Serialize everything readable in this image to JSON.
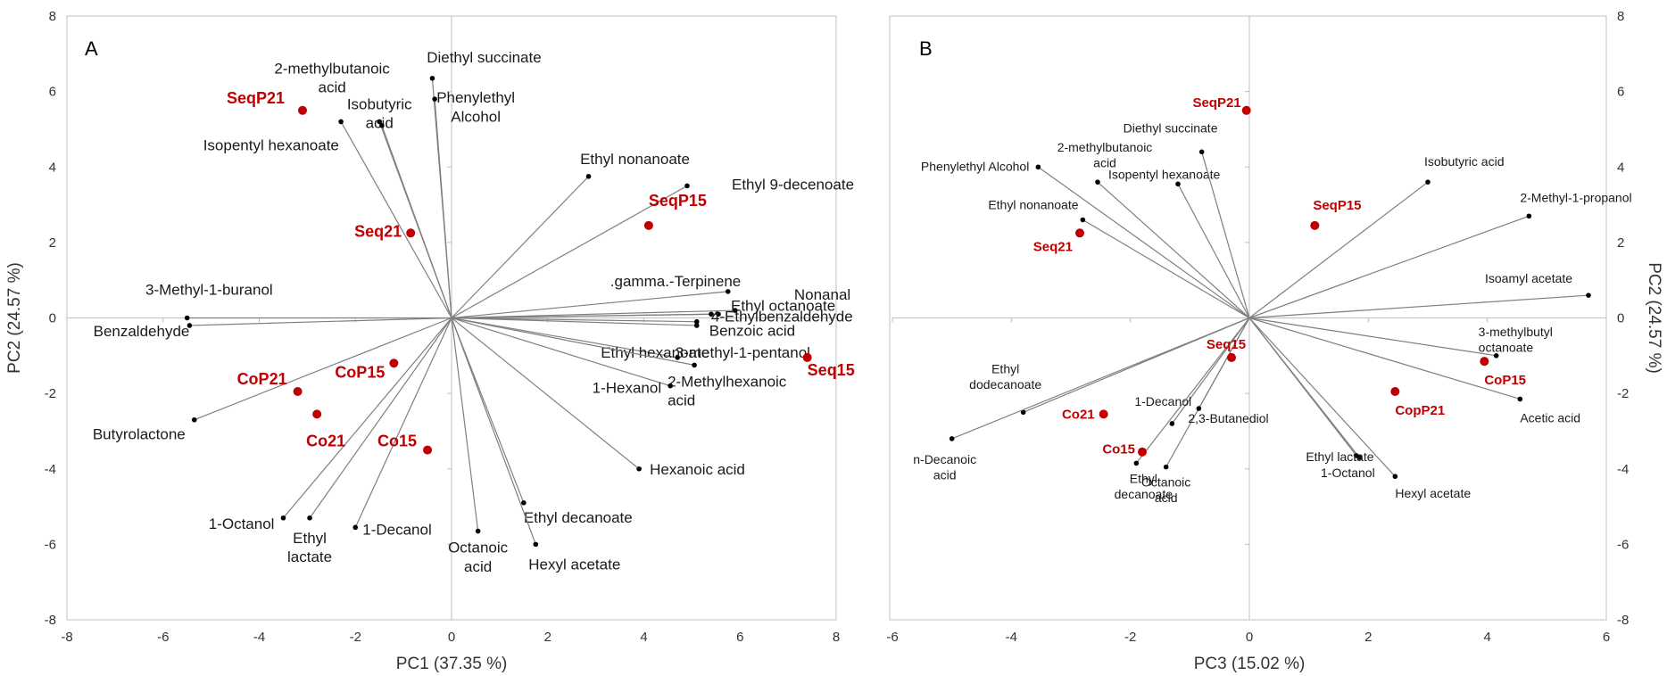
{
  "chart_data": [
    {
      "type": "scatter",
      "panel": "A",
      "xlabel": "PC1 (37.35 %)",
      "ylabel": "PC2 (24.57 %)",
      "xlim": [
        -8,
        8
      ],
      "ylim": [
        -8,
        8
      ],
      "xticks": [
        -8,
        -6,
        -4,
        -2,
        0,
        2,
        4,
        6,
        8
      ],
      "yticks": [
        -8,
        -6,
        -4,
        -2,
        0,
        2,
        4,
        6,
        8
      ],
      "grid": false,
      "loading_color": "#000000",
      "sample_color": "#c00000",
      "loadings": [
        {
          "label": "2-methylbutanoic\nacid",
          "x": -2.3,
          "y": 5.2
        },
        {
          "label": "Isobutyric\nacid",
          "x": -1.5,
          "y": 5.2
        },
        {
          "label": "Isopentyl hexanoate",
          "x": -1.45,
          "y": 5.1
        },
        {
          "label": "Diethyl succinate",
          "x": -0.4,
          "y": 6.35
        },
        {
          "label": "Phenylethyl\nAlcohol",
          "x": -0.35,
          "y": 5.8
        },
        {
          "label": "Ethyl nonanoate",
          "x": 2.85,
          "y": 3.75
        },
        {
          "label": "Ethyl 9-decenoate",
          "x": 4.9,
          "y": 3.5
        },
        {
          "label": ".gamma.-Terpinene",
          "x": 5.75,
          "y": 0.7
        },
        {
          "label": "Nonanal",
          "x": 5.9,
          "y": 0.2
        },
        {
          "label": "Ethyl octanoate",
          "x": 5.55,
          "y": 0.1
        },
        {
          "label": "4-Ethylbenzaldehyde",
          "x": 5.4,
          "y": 0.1
        },
        {
          "label": "Benzoic acid",
          "x": 5.1,
          "y": -0.1
        },
        {
          "label": "3-methyl-1-pentanol",
          "x": 5.1,
          "y": -0.2
        },
        {
          "label": "Ethyl hexanoate",
          "x": 4.7,
          "y": -1.05
        },
        {
          "label": "2-Methylhexanoic\nacid",
          "x": 5.05,
          "y": -1.25
        },
        {
          "label": "1-Hexanol",
          "x": 4.55,
          "y": -1.8
        },
        {
          "label": "Hexanoic acid",
          "x": 3.9,
          "y": -4.0
        },
        {
          "label": "Ethyl decanoate",
          "x": 1.5,
          "y": -4.9
        },
        {
          "label": "Hexyl acetate",
          "x": 1.75,
          "y": -6.0
        },
        {
          "label": "Octanoic\nacid",
          "x": 0.55,
          "y": -5.65
        },
        {
          "label": "1-Decanol",
          "x": -2.0,
          "y": -5.55
        },
        {
          "label": "Ethyl\nlactate",
          "x": -2.95,
          "y": -5.3
        },
        {
          "label": "1-Octanol",
          "x": -3.5,
          "y": -5.3
        },
        {
          "label": "Butyrolactone",
          "x": -5.35,
          "y": -2.7
        },
        {
          "label": "3-Methyl-1-buranol",
          "x": -5.5,
          "y": 0.0
        },
        {
          "label": "Benzaldehyde",
          "x": -5.45,
          "y": -0.2
        }
      ],
      "samples": [
        {
          "label": "SeqP21",
          "x": -3.1,
          "y": 5.5
        },
        {
          "label": "Seq21",
          "x": -0.85,
          "y": 2.25
        },
        {
          "label": "SeqP15",
          "x": 4.1,
          "y": 2.45
        },
        {
          "label": "Seq15",
          "x": 7.4,
          "y": -1.05
        },
        {
          "label": "CoP15",
          "x": -1.2,
          "y": -1.2
        },
        {
          "label": "CoP21",
          "x": -3.2,
          "y": -1.95
        },
        {
          "label": "Co21",
          "x": -2.8,
          "y": -2.55
        },
        {
          "label": "Co15",
          "x": -0.5,
          "y": -3.5
        }
      ]
    },
    {
      "type": "scatter",
      "panel": "B",
      "xlabel": "PC3 (15.02 %)",
      "ylabel": "PC2 (24.57 %)",
      "xlim": [
        -6,
        6
      ],
      "ylim": [
        -8,
        8
      ],
      "xticks": [
        -6,
        -4,
        -2,
        0,
        2,
        4,
        6
      ],
      "yticks": [
        -8,
        -6,
        -4,
        -2,
        0,
        2,
        4,
        6,
        8
      ],
      "grid": false,
      "loading_color": "#000000",
      "sample_color": "#c00000",
      "loadings": [
        {
          "label": "Phenylethyl Alcohol",
          "x": -3.55,
          "y": 4.0
        },
        {
          "label": "2-methylbutanoic\nacid",
          "x": -2.55,
          "y": 3.6
        },
        {
          "label": "Isopentyl hexanoate",
          "x": -1.2,
          "y": 3.55
        },
        {
          "label": "Diethyl succinate",
          "x": -0.8,
          "y": 4.4
        },
        {
          "label": "Isobutyric acid",
          "x": 3.0,
          "y": 3.6
        },
        {
          "label": "2-Methyl-1-propanol",
          "x": 4.7,
          "y": 2.7
        },
        {
          "label": "Isoamyl acetate",
          "x": 5.7,
          "y": 0.6
        },
        {
          "label": "3-methylbutyl\noctanoate",
          "x": 4.15,
          "y": -1.0
        },
        {
          "label": "Acetic acid",
          "x": 4.55,
          "y": -2.15
        },
        {
          "label": "Hexyl acetate",
          "x": 2.45,
          "y": -4.2
        },
        {
          "label": "Ethyl lactate",
          "x": 1.85,
          "y": -3.7
        },
        {
          "label": "1-Octanol",
          "x": 1.8,
          "y": -3.65
        },
        {
          "label": "Octanoic\nacid",
          "x": -1.4,
          "y": -3.95
        },
        {
          "label": "2,3-Butanediol",
          "x": -0.85,
          "y": -2.4
        },
        {
          "label": "1-Decanol",
          "x": -1.3,
          "y": -2.8
        },
        {
          "label": "Ethyl\ndecanoate",
          "x": -1.9,
          "y": -3.85
        },
        {
          "label": "Ethyl\ndodecanoate",
          "x": -3.8,
          "y": -2.5
        },
        {
          "label": "n-Decanoic\nacid",
          "x": -5.0,
          "y": -3.2
        },
        {
          "label": "Ethyl nonanoate",
          "x": -2.8,
          "y": 2.6
        }
      ],
      "samples": [
        {
          "label": "SeqP21",
          "x": -0.05,
          "y": 5.5
        },
        {
          "label": "SeqP15",
          "x": 1.1,
          "y": 2.45
        },
        {
          "label": "Seq21",
          "x": -2.85,
          "y": 2.25
        },
        {
          "label": "Seq15",
          "x": -0.3,
          "y": -1.05
        },
        {
          "label": "CoP15",
          "x": 3.95,
          "y": -1.15
        },
        {
          "label": "CopP21",
          "x": 2.45,
          "y": -1.95
        },
        {
          "label": "Co21",
          "x": -2.45,
          "y": -2.55
        },
        {
          "label": "Co15",
          "x": -1.8,
          "y": -3.55
        }
      ]
    }
  ]
}
